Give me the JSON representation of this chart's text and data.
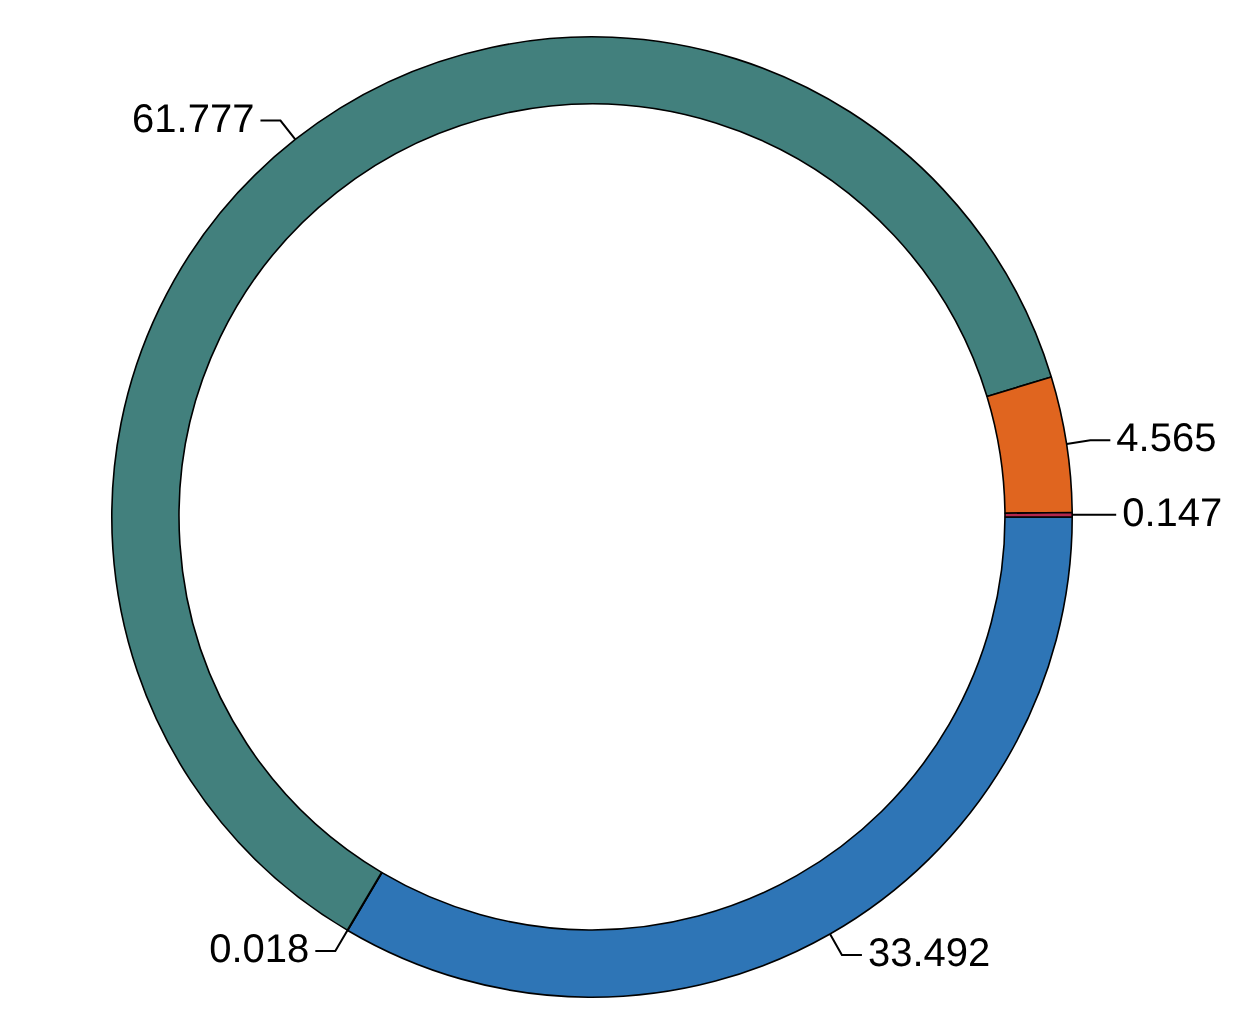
{
  "chart_data": {
    "type": "donut",
    "categories": [
      null,
      null,
      null,
      null,
      null
    ],
    "values": [
      33.492,
      0.018,
      61.777,
      4.565,
      0.147
    ],
    "colors": [
      "#2e75b6",
      "#333333",
      "#42807d",
      "#e0651f",
      "#b2284d"
    ],
    "data_labels": true,
    "legend": false
  }
}
